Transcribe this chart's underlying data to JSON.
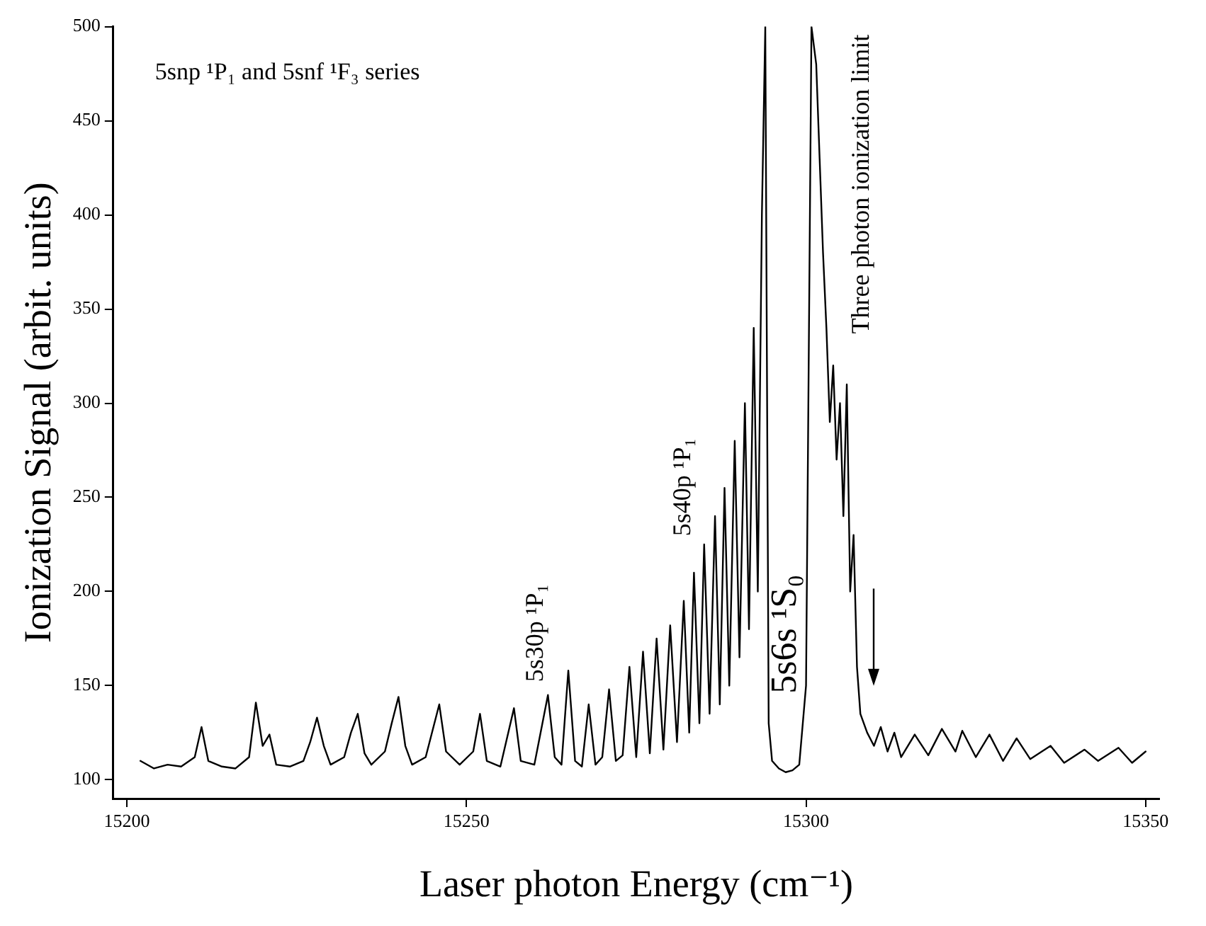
{
  "chart_data": {
    "type": "line",
    "xlabel": "Laser photon Energy (cm⁻¹)",
    "ylabel": "Ionization Signal (arbit. units)",
    "annotations": [
      "5snp ¹P₁ and 5snf ¹F₃ series",
      "5s30p ¹P₁",
      "5s40p ¹P₁",
      "5s6s ¹S₀",
      "Three photon ionization limit"
    ],
    "xlim": [
      15198,
      15352
    ],
    "ylim": [
      90,
      500
    ],
    "xticks": [
      15200,
      15250,
      15300,
      15350
    ],
    "yticks": [
      100,
      150,
      200,
      250,
      300,
      350,
      400,
      450,
      500
    ],
    "grid": false,
    "legend": false,
    "marker": "none",
    "line_style": "solid",
    "series": [
      {
        "color": "#000000",
        "x": [
          15202,
          15204,
          15206,
          15208,
          15210,
          15211,
          15212,
          15214,
          15216,
          15218,
          15219,
          15220,
          15221,
          15222,
          15224,
          15226,
          15227,
          15228,
          15229,
          15230,
          15232,
          15233,
          15234,
          15235,
          15236,
          15238,
          15239,
          15240,
          15241,
          15242,
          15244,
          15246,
          15247,
          15249,
          15251,
          15252,
          15253,
          15255,
          15257,
          15258,
          15260,
          15262,
          15263,
          15264,
          15265,
          15266,
          15267,
          15268,
          15269,
          15270,
          15271,
          15272,
          15273,
          15274,
          15275,
          15276,
          15277,
          15278,
          15279,
          15280,
          15281,
          15282,
          15282.8,
          15283.5,
          15284.3,
          15285,
          15285.8,
          15286.6,
          15287.3,
          15288,
          15288.7,
          15289.5,
          15290.2,
          15291,
          15291.6,
          15292.3,
          15292.9,
          15293.5,
          15294,
          15294.5,
          15295,
          15296,
          15297,
          15298,
          15299,
          15300,
          15300.8,
          15301.5,
          15302,
          15302.5,
          15303,
          15303.5,
          15304,
          15304.5,
          15305,
          15305.5,
          15306,
          15306.5,
          15307,
          15307.5,
          15308,
          15309,
          15310,
          15311,
          15312,
          15313,
          15314,
          15316,
          15318,
          15320,
          15322,
          15323,
          15325,
          15327,
          15329,
          15331,
          15333,
          15336,
          15338,
          15341,
          15343,
          15346,
          15348,
          15350
        ],
        "values": [
          110,
          106,
          108,
          107,
          112,
          128,
          110,
          107,
          106,
          112,
          141,
          118,
          124,
          108,
          107,
          110,
          120,
          133,
          118,
          108,
          112,
          125,
          135,
          114,
          108,
          115,
          130,
          144,
          118,
          108,
          112,
          140,
          115,
          108,
          115,
          135,
          110,
          107,
          138,
          110,
          108,
          145,
          112,
          108,
          158,
          110,
          107,
          140,
          108,
          112,
          148,
          110,
          113,
          160,
          112,
          168,
          114,
          175,
          116,
          182,
          120,
          195,
          125,
          210,
          130,
          225,
          135,
          240,
          140,
          255,
          150,
          280,
          165,
          300,
          180,
          340,
          200,
          400,
          500,
          130,
          110,
          106,
          104,
          105,
          108,
          150,
          500,
          480,
          430,
          380,
          340,
          290,
          320,
          270,
          300,
          240,
          310,
          200,
          230,
          160,
          135,
          125,
          118,
          128,
          115,
          125,
          112,
          124,
          113,
          127,
          115,
          126,
          112,
          124,
          110,
          122,
          111,
          118,
          109,
          116,
          110,
          117,
          109,
          115
        ]
      }
    ]
  }
}
